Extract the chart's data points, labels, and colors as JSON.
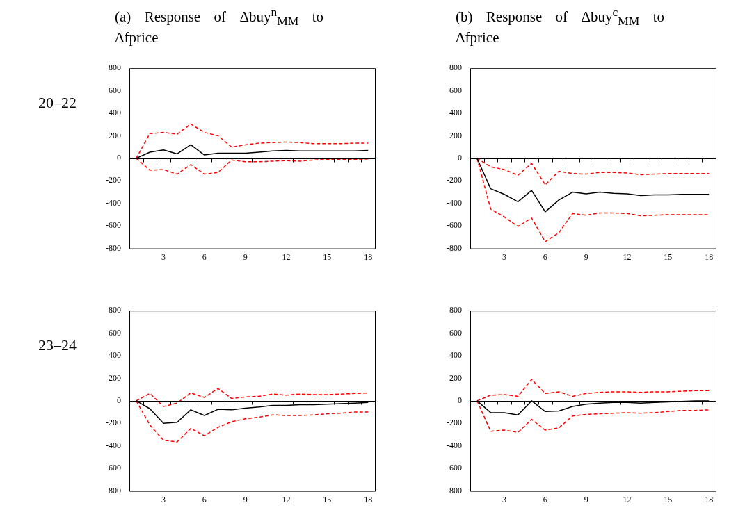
{
  "chart_data": [
    {
      "type": "line",
      "title": "(a) Response of Δbuy$^{n}$$_{MM}$ to Δfprice",
      "ylabel": "20–22",
      "categories": [
        null,
        null,
        "3",
        null,
        null,
        "6",
        null,
        null,
        "9",
        null,
        null,
        "12",
        null,
        null,
        "15",
        null,
        null,
        "18"
      ],
      "ylim": [
        -800,
        800
      ],
      "yticks": [
        -800,
        -600,
        -400,
        -200,
        0,
        200,
        400,
        600,
        800
      ],
      "legend": false,
      "marker": "none",
      "series": [
        {
          "color": "#000000",
          "line_style": "solid",
          "values": [
            0,
            55,
            75,
            40,
            120,
            30,
            45,
            45,
            45,
            55,
            65,
            70,
            65,
            65,
            65,
            65,
            65,
            70
          ]
        },
        {
          "color": "#ff0000",
          "line_style": "dashed",
          "values": [
            0,
            220,
            230,
            215,
            305,
            230,
            200,
            100,
            120,
            135,
            140,
            145,
            140,
            130,
            130,
            130,
            135,
            135
          ]
        },
        {
          "color": "#ff0000",
          "line_style": "dashed",
          "values": [
            0,
            -105,
            -100,
            -140,
            -55,
            -140,
            -125,
            -15,
            -30,
            -30,
            -25,
            -20,
            -25,
            -15,
            -10,
            -10,
            -10,
            -5
          ]
        }
      ]
    },
    {
      "type": "line",
      "title": "(b) Response of Δbuy$^{c}$$_{MM}$ to Δfprice",
      "categories": [
        null,
        null,
        "3",
        null,
        null,
        "6",
        null,
        null,
        "9",
        null,
        null,
        "12",
        null,
        null,
        "15",
        null,
        null,
        "18"
      ],
      "ylim": [
        -800,
        800
      ],
      "yticks": [
        -800,
        -600,
        -400,
        -200,
        0,
        200,
        400,
        600,
        800
      ],
      "legend": false,
      "marker": "none",
      "series": [
        {
          "color": "#000000",
          "line_style": "solid",
          "values": [
            0,
            -270,
            -320,
            -385,
            -285,
            -475,
            -370,
            -300,
            -315,
            -300,
            -310,
            -315,
            -330,
            -325,
            -325,
            -320,
            -320,
            -320
          ]
        },
        {
          "color": "#ff0000",
          "line_style": "dashed",
          "values": [
            0,
            -75,
            -100,
            -150,
            -45,
            -235,
            -115,
            -135,
            -140,
            -125,
            -125,
            -130,
            -145,
            -140,
            -135,
            -135,
            -135,
            -135
          ]
        },
        {
          "color": "#ff0000",
          "line_style": "dashed",
          "values": [
            0,
            -450,
            -520,
            -605,
            -530,
            -740,
            -660,
            -490,
            -505,
            -485,
            -485,
            -490,
            -510,
            -505,
            -500,
            -500,
            -500,
            -500
          ]
        }
      ]
    },
    {
      "type": "line",
      "ylabel": "23–24",
      "categories": [
        null,
        null,
        "3",
        null,
        null,
        "6",
        null,
        null,
        "9",
        null,
        null,
        "12",
        null,
        null,
        "15",
        null,
        null,
        "18"
      ],
      "ylim": [
        -800,
        800
      ],
      "yticks": [
        -800,
        -600,
        -400,
        -200,
        0,
        200,
        400,
        600,
        800
      ],
      "legend": false,
      "marker": "none",
      "series": [
        {
          "color": "#000000",
          "line_style": "solid",
          "values": [
            0,
            -70,
            -200,
            -190,
            -80,
            -130,
            -75,
            -80,
            -65,
            -55,
            -40,
            -40,
            -35,
            -35,
            -30,
            -25,
            -20,
            -15
          ]
        },
        {
          "color": "#ff0000",
          "line_style": "dashed",
          "values": [
            0,
            65,
            -50,
            -20,
            70,
            30,
            110,
            20,
            35,
            40,
            60,
            50,
            60,
            55,
            55,
            60,
            65,
            70
          ]
        },
        {
          "color": "#ff0000",
          "line_style": "dashed",
          "values": [
            0,
            -215,
            -350,
            -365,
            -245,
            -310,
            -235,
            -185,
            -160,
            -145,
            -125,
            -130,
            -130,
            -125,
            -115,
            -110,
            -100,
            -100
          ]
        }
      ]
    },
    {
      "type": "line",
      "categories": [
        null,
        null,
        "3",
        null,
        null,
        "6",
        null,
        null,
        "9",
        null,
        null,
        "12",
        null,
        null,
        "15",
        null,
        null,
        "18"
      ],
      "ylim": [
        -800,
        800
      ],
      "yticks": [
        -800,
        -600,
        -400,
        -200,
        0,
        200,
        400,
        600,
        800
      ],
      "legend": false,
      "marker": "none",
      "series": [
        {
          "color": "#000000",
          "line_style": "solid",
          "values": [
            0,
            -105,
            -105,
            -125,
            0,
            -95,
            -90,
            -50,
            -30,
            -20,
            -15,
            -15,
            -20,
            -15,
            -10,
            -5,
            0,
            0
          ]
        },
        {
          "color": "#ff0000",
          "line_style": "dashed",
          "values": [
            0,
            50,
            55,
            40,
            190,
            65,
            80,
            40,
            65,
            75,
            80,
            80,
            75,
            80,
            80,
            85,
            90,
            90
          ]
        },
        {
          "color": "#ff0000",
          "line_style": "dashed",
          "values": [
            0,
            -270,
            -260,
            -280,
            -165,
            -260,
            -240,
            -135,
            -120,
            -115,
            -110,
            -105,
            -110,
            -105,
            -95,
            -85,
            -85,
            -80
          ]
        }
      ]
    }
  ]
}
